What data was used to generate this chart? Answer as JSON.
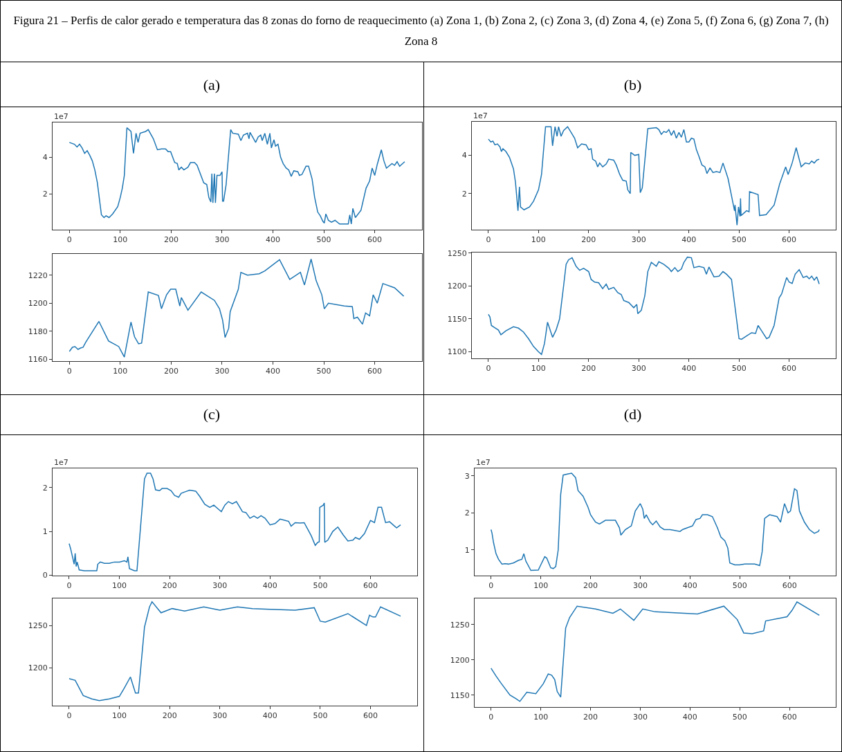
{
  "chart_data": [
    {
      "type": "line",
      "title": "Figura 21 – Perfis de calor gerado e temperatura das 8 zonas do forno de reaquecimento (a) Zona 1, (b) Zona 2, (c) Zona 3, (d) Zona 4, (e) Zona 5, (f) Zona 6, (g) Zona 7, (h) Zona 8",
      "subtitle": "(a)",
      "annotations": [
        "1e7"
      ],
      "xlim": [
        -33,
        693
      ],
      "xticks": [
        0,
        100,
        200,
        300,
        400,
        500,
        600
      ],
      "ylim": [
        0.04,
        5.89
      ],
      "yticks": [
        2,
        4
      ],
      "grid": false,
      "x": [
        0,
        10,
        15,
        20,
        25,
        30,
        35,
        40,
        45,
        50,
        55,
        60,
        63,
        68,
        72,
        78,
        85,
        95,
        100,
        104,
        108,
        113,
        121,
        126,
        131,
        135,
        139,
        150,
        155,
        165,
        173,
        181,
        189,
        194,
        199,
        207,
        212,
        215,
        220,
        225,
        233,
        238,
        246,
        251,
        264,
        270,
        274,
        278,
        280,
        282,
        285,
        287,
        290,
        296,
        300,
        301,
        303,
        308,
        317,
        321,
        332,
        337,
        342,
        350,
        353,
        355,
        360,
        366,
        371,
        376,
        379,
        384,
        389,
        394,
        397,
        402,
        405,
        410,
        415,
        420,
        426,
        431,
        436,
        441,
        449,
        452,
        457,
        465,
        470,
        477,
        482,
        485,
        488,
        493,
        498,
        501,
        504,
        509,
        515,
        522,
        531,
        548,
        551,
        554,
        557,
        562,
        573,
        583,
        590,
        595,
        600,
        605,
        613,
        618,
        623,
        634,
        639,
        644,
        649,
        657,
        659
      ],
      "series": [
        {
          "color": "#1f77b4",
          "values": [
            4.8,
            4.7,
            4.55,
            4.7,
            4.5,
            4.2,
            4.35,
            4.1,
            3.8,
            3.3,
            2.6,
            1.5,
            0.85,
            0.7,
            0.8,
            0.7,
            0.9,
            1.3,
            1.8,
            2.3,
            3.0,
            5.6,
            5.4,
            4.2,
            5.3,
            4.8,
            5.3,
            5.4,
            5.5,
            5.0,
            4.4,
            4.45,
            4.45,
            4.3,
            4.3,
            3.7,
            3.65,
            3.3,
            3.45,
            3.3,
            3.45,
            3.7,
            3.7,
            3.55,
            2.6,
            2.5,
            1.8,
            1.55,
            3.1,
            1.5,
            3.1,
            1.5,
            3.0,
            3.0,
            3.2,
            1.6,
            1.6,
            2.5,
            5.5,
            5.3,
            5.25,
            4.9,
            5.2,
            5.3,
            5.0,
            5.35,
            5.1,
            4.8,
            5.1,
            5.2,
            4.9,
            5.3,
            4.7,
            5.3,
            4.5,
            4.95,
            4.6,
            4.7,
            4.0,
            3.65,
            3.4,
            3.3,
            2.95,
            3.25,
            3.2,
            3.0,
            3.05,
            3.5,
            3.5,
            2.8,
            1.8,
            1.4,
            1.0,
            0.8,
            0.5,
            0.4,
            0.9,
            0.55,
            0.45,
            0.55,
            0.35,
            0.35,
            0.85,
            0.35,
            1.2,
            0.7,
            1.1,
            2.3,
            2.7,
            3.4,
            3.0,
            3.6,
            4.4,
            3.8,
            3.4,
            3.65,
            3.55,
            3.75,
            3.5,
            3.7,
            3.75
          ]
        }
      ]
    },
    {
      "type": "line",
      "xlim": [
        -33,
        693
      ],
      "xticks": [
        0,
        100,
        200,
        300,
        400,
        500,
        600
      ],
      "ylim": [
        1158.6,
        1235.2
      ],
      "yticks": [
        1160,
        1180,
        1200,
        1220
      ],
      "grid": false,
      "x": [
        0,
        6,
        11,
        17,
        22,
        27,
        32,
        58,
        77,
        87,
        97,
        108,
        121,
        128,
        136,
        142,
        155,
        175,
        181,
        191,
        199,
        209,
        217,
        220,
        233,
        259,
        285,
        295,
        301,
        306,
        313,
        316,
        332,
        337,
        350,
        373,
        384,
        413,
        433,
        454,
        462,
        475,
        485,
        496,
        501,
        509,
        540,
        556,
        559,
        566,
        576,
        582,
        590,
        597,
        605,
        616,
        639,
        657
      ],
      "series": [
        {
          "color": "#1f77b4",
          "values": [
            1165.5,
            1168.5,
            1169,
            1167,
            1168,
            1168.5,
            1172,
            1187,
            1173,
            1171,
            1169,
            1161.5,
            1186.5,
            1176,
            1171,
            1171.5,
            1208,
            1205.5,
            1196,
            1206,
            1210,
            1210,
            1198,
            1204,
            1195,
            1208,
            1202,
            1196,
            1188,
            1175.5,
            1182,
            1194,
            1210,
            1222,
            1220,
            1221,
            1223,
            1231,
            1217,
            1222,
            1213,
            1231.5,
            1216,
            1206,
            1196,
            1200,
            1198,
            1197.5,
            1189,
            1190,
            1185,
            1193,
            1191,
            1206,
            1200,
            1214,
            1211,
            1205
          ]
        }
      ]
    },
    {
      "type": "line",
      "subtitle": "(b)",
      "annotations": [
        "1e7"
      ],
      "xlim": [
        -33,
        693
      ],
      "xticks": [
        0,
        100,
        200,
        300,
        400,
        500,
        600
      ],
      "ylim": [
        0.11,
        5.76
      ],
      "yticks": [
        2,
        4
      ],
      "grid": false,
      "x": [
        0,
        5,
        9,
        13,
        18,
        23,
        26,
        29,
        35,
        42,
        50,
        54,
        59,
        62,
        64,
        71,
        82,
        90,
        100,
        106,
        114,
        125,
        128,
        133,
        137,
        140,
        145,
        150,
        158,
        165,
        172,
        178,
        186,
        195,
        200,
        205,
        208,
        214,
        218,
        222,
        228,
        235,
        240,
        250,
        255,
        262,
        268,
        275,
        278,
        283,
        284,
        292,
        300,
        303,
        307,
        318,
        335,
        340,
        345,
        350,
        355,
        360,
        365,
        370,
        375,
        380,
        385,
        390,
        395,
        400,
        405,
        410,
        415,
        420,
        426,
        432,
        436,
        442,
        448,
        455,
        462,
        468,
        478,
        491,
        492,
        496,
        499,
        502,
        503,
        504,
        515,
        520,
        521,
        538,
        541,
        554,
        570,
        581,
        593,
        598,
        606,
        614,
        624,
        632,
        640,
        645,
        650,
        655,
        660
      ],
      "series": [
        {
          "color": "#1f77b4",
          "values": [
            4.85,
            4.7,
            4.75,
            4.55,
            4.6,
            4.45,
            4.2,
            4.35,
            4.2,
            3.9,
            3.3,
            2.6,
            1.1,
            2.35,
            1.3,
            1.15,
            1.3,
            1.6,
            2.2,
            3.0,
            5.5,
            5.5,
            4.5,
            5.5,
            5.0,
            5.5,
            5.0,
            5.3,
            5.5,
            5.2,
            4.9,
            4.4,
            4.6,
            4.55,
            4.3,
            4.35,
            3.8,
            3.7,
            3.4,
            3.6,
            3.4,
            3.55,
            3.8,
            3.75,
            3.5,
            3.0,
            2.7,
            2.65,
            2.2,
            2.0,
            4.15,
            4.0,
            4.05,
            2.05,
            2.3,
            5.4,
            5.45,
            5.35,
            5.1,
            5.25,
            5.2,
            5.35,
            5.05,
            5.3,
            4.9,
            5.2,
            4.95,
            5.35,
            4.7,
            4.7,
            4.9,
            4.85,
            4.3,
            3.95,
            3.5,
            3.4,
            3.05,
            3.35,
            3.1,
            3.15,
            3.1,
            3.6,
            2.8,
            1.1,
            1.4,
            0.35,
            1.3,
            0.8,
            1.75,
            0.85,
            1.1,
            1.05,
            2.1,
            1.95,
            0.85,
            0.9,
            1.4,
            2.5,
            3.4,
            3.0,
            3.6,
            4.4,
            3.4,
            3.6,
            3.55,
            3.7,
            3.6,
            3.75,
            3.8
          ]
        }
      ]
    },
    {
      "type": "line",
      "xlim": [
        -33,
        693
      ],
      "xticks": [
        0,
        100,
        200,
        300,
        400,
        500,
        600
      ],
      "ylim": [
        1090,
        1251
      ],
      "yticks": [
        1100,
        1150,
        1200,
        1250
      ],
      "grid": false,
      "x": [
        0,
        3,
        6,
        12,
        20,
        25,
        35,
        50,
        60,
        70,
        80,
        90,
        100,
        106,
        112,
        118,
        128,
        135,
        142,
        150,
        155,
        160,
        167,
        175,
        182,
        190,
        200,
        205,
        212,
        220,
        228,
        235,
        240,
        250,
        258,
        265,
        270,
        280,
        290,
        296,
        298,
        305,
        312,
        318,
        325,
        335,
        340,
        350,
        360,
        365,
        372,
        378,
        385,
        390,
        397,
        405,
        410,
        420,
        430,
        435,
        440,
        450,
        460,
        468,
        475,
        485,
        495,
        500,
        505,
        515,
        525,
        533,
        538,
        545,
        555,
        560,
        570,
        580,
        585,
        595,
        600,
        606,
        612,
        620,
        628,
        635,
        640,
        645,
        650,
        655,
        660
      ],
      "series": [
        {
          "color": "#1f77b4",
          "values": [
            1157,
            1153,
            1140,
            1137,
            1133,
            1126,
            1132,
            1138,
            1136,
            1130,
            1120,
            1108,
            1100,
            1096,
            1113,
            1145,
            1122,
            1133,
            1150,
            1200,
            1233,
            1240,
            1243,
            1230,
            1224,
            1227,
            1222,
            1210,
            1206,
            1205,
            1196,
            1203,
            1195,
            1198,
            1190,
            1187,
            1178,
            1175,
            1167,
            1172,
            1158,
            1163,
            1185,
            1222,
            1236,
            1230,
            1237,
            1233,
            1227,
            1222,
            1228,
            1222,
            1226,
            1236,
            1244,
            1243,
            1228,
            1230,
            1228,
            1218,
            1229,
            1214,
            1215,
            1222,
            1218,
            1210,
            1150,
            1120,
            1119,
            1124,
            1129,
            1128,
            1140,
            1132,
            1120,
            1122,
            1140,
            1182,
            1188,
            1213,
            1206,
            1204,
            1218,
            1225,
            1213,
            1215,
            1211,
            1215,
            1209,
            1214,
            1203
          ]
        }
      ]
    },
    {
      "type": "line",
      "subtitle": "(c)",
      "annotations": [
        "1e7"
      ],
      "xlim": [
        -33,
        693
      ],
      "xticks": [
        0,
        100,
        200,
        300,
        400,
        500,
        600
      ],
      "ylim": [
        -0.01,
        2.44
      ],
      "yticks": [
        0,
        1,
        2
      ],
      "grid": false,
      "x": [
        0,
        3,
        6,
        10,
        12,
        14,
        16,
        20,
        30,
        55,
        57,
        62,
        70,
        80,
        90,
        100,
        110,
        115,
        117,
        120,
        130,
        135,
        145,
        150,
        155,
        162,
        167,
        172,
        180,
        185,
        195,
        203,
        210,
        218,
        223,
        230,
        240,
        252,
        260,
        270,
        280,
        288,
        298,
        303,
        310,
        317,
        325,
        333,
        340,
        345,
        352,
        360,
        368,
        375,
        382,
        390,
        400,
        410,
        420,
        430,
        437,
        442,
        450,
        460,
        468,
        475,
        482,
        490,
        495,
        498,
        499,
        506,
        508,
        509,
        515,
        525,
        535,
        545,
        555,
        565,
        570,
        578,
        588,
        600,
        608,
        615,
        622,
        630,
        638,
        645,
        652,
        660
      ],
      "series": [
        {
          "color": "#1f77b4",
          "values": [
            0.72,
            0.6,
            0.45,
            0.25,
            0.5,
            0.2,
            0.3,
            0.12,
            0.1,
            0.1,
            0.25,
            0.3,
            0.27,
            0.27,
            0.3,
            0.3,
            0.33,
            0.3,
            0.42,
            0.15,
            0.1,
            0.1,
            1.5,
            2.2,
            2.33,
            2.33,
            2.2,
            1.95,
            1.93,
            1.98,
            1.98,
            1.93,
            1.82,
            1.78,
            1.87,
            1.9,
            1.94,
            1.92,
            1.8,
            1.62,
            1.55,
            1.6,
            1.5,
            1.45,
            1.6,
            1.68,
            1.63,
            1.68,
            1.55,
            1.45,
            1.43,
            1.3,
            1.35,
            1.3,
            1.36,
            1.3,
            1.15,
            1.18,
            1.28,
            1.25,
            1.23,
            1.12,
            1.2,
            1.19,
            1.2,
            1.05,
            0.9,
            0.68,
            0.75,
            0.76,
            1.55,
            1.6,
            1.65,
            0.75,
            0.8,
            1.0,
            1.1,
            0.93,
            0.78,
            0.8,
            0.86,
            0.82,
            0.95,
            1.25,
            1.2,
            1.55,
            1.55,
            1.2,
            1.22,
            1.15,
            1.08,
            1.15
          ]
        }
      ]
    },
    {
      "type": "line",
      "xlim": [
        -33,
        693
      ],
      "xticks": [
        0,
        100,
        200,
        300,
        400,
        500,
        600
      ],
      "ylim": [
        1155,
        1282
      ],
      "yticks": [
        1200,
        1250
      ],
      "grid": false,
      "x": [
        0,
        12,
        28,
        45,
        60,
        80,
        100,
        110,
        122,
        132,
        138,
        150,
        160,
        165,
        183,
        205,
        230,
        268,
        300,
        335,
        365,
        400,
        450,
        488,
        500,
        510,
        555,
        592,
        598,
        605,
        610,
        620,
        660
      ],
      "series": [
        {
          "color": "#1f77b4",
          "values": [
            1187,
            1185,
            1167,
            1163,
            1161,
            1163,
            1166,
            1176,
            1189,
            1170,
            1170,
            1248,
            1272,
            1278,
            1265,
            1270,
            1267,
            1272,
            1268,
            1272,
            1270,
            1269,
            1268,
            1271,
            1255,
            1254,
            1264,
            1250,
            1262,
            1260,
            1260,
            1272,
            1261
          ]
        }
      ]
    },
    {
      "type": "line",
      "subtitle": "(d)",
      "annotations": [
        "1e7"
      ],
      "xlim": [
        -33,
        693
      ],
      "xticks": [
        0,
        100,
        200,
        300,
        400,
        500,
        600
      ],
      "ylim": [
        0.31,
        3.2
      ],
      "yticks": [
        1,
        2,
        3
      ],
      "grid": false,
      "x": [
        0,
        2,
        5,
        10,
        15,
        22,
        28,
        35,
        45,
        55,
        62,
        66,
        70,
        80,
        95,
        100,
        108,
        112,
        120,
        125,
        130,
        135,
        140,
        145,
        155,
        162,
        170,
        175,
        185,
        195,
        200,
        205,
        210,
        218,
        230,
        240,
        250,
        258,
        261,
        270,
        282,
        290,
        300,
        305,
        308,
        312,
        320,
        325,
        332,
        340,
        348,
        360,
        380,
        385,
        395,
        405,
        412,
        420,
        425,
        435,
        445,
        455,
        462,
        470,
        476,
        480,
        490,
        500,
        510,
        530,
        540,
        545,
        550,
        555,
        560,
        575,
        582,
        590,
        597,
        602,
        610,
        615,
        620,
        630,
        640,
        650,
        658,
        660
      ],
      "series": [
        {
          "color": "#1f77b4",
          "values": [
            1.55,
            1.45,
            1.2,
            0.9,
            0.75,
            0.62,
            0.63,
            0.62,
            0.65,
            0.72,
            0.75,
            0.9,
            0.7,
            0.45,
            0.46,
            0.6,
            0.82,
            0.78,
            0.52,
            0.5,
            0.55,
            1.0,
            2.5,
            3.02,
            3.05,
            3.07,
            2.95,
            2.6,
            2.45,
            2.15,
            1.95,
            1.85,
            1.75,
            1.7,
            1.8,
            1.8,
            1.8,
            1.6,
            1.4,
            1.55,
            1.65,
            2.05,
            2.25,
            2.1,
            1.85,
            1.95,
            1.75,
            1.68,
            1.78,
            1.62,
            1.55,
            1.55,
            1.5,
            1.55,
            1.6,
            1.65,
            1.82,
            1.85,
            1.95,
            1.95,
            1.9,
            1.6,
            1.35,
            1.25,
            1.05,
            0.65,
            0.6,
            0.6,
            0.62,
            0.62,
            0.58,
            0.95,
            1.85,
            1.9,
            1.95,
            1.9,
            1.75,
            2.25,
            2.0,
            2.05,
            2.65,
            2.6,
            2.05,
            1.75,
            1.55,
            1.45,
            1.5,
            1.55
          ]
        }
      ]
    },
    {
      "type": "line",
      "xlim": [
        -33,
        693
      ],
      "xticks": [
        0,
        100,
        200,
        300,
        400,
        500,
        600
      ],
      "ylim": [
        1133,
        1287
      ],
      "yticks": [
        1150,
        1200,
        1250
      ],
      "grid": false,
      "x": [
        0,
        10,
        20,
        38,
        50,
        58,
        72,
        90,
        105,
        115,
        122,
        128,
        133,
        140,
        150,
        158,
        173,
        210,
        245,
        260,
        287,
        305,
        330,
        415,
        468,
        495,
        508,
        525,
        548,
        552,
        595,
        605,
        615,
        660
      ],
      "series": [
        {
          "color": "#1f77b4",
          "values": [
            1188,
            1177,
            1167,
            1150,
            1145,
            1141,
            1154,
            1152,
            1166,
            1180,
            1178,
            1172,
            1155,
            1147,
            1245,
            1260,
            1276,
            1272,
            1266,
            1272,
            1256,
            1272,
            1268,
            1265,
            1276,
            1257,
            1238,
            1237,
            1241,
            1255,
            1261,
            1270,
            1282,
            1263
          ]
        }
      ]
    }
  ]
}
